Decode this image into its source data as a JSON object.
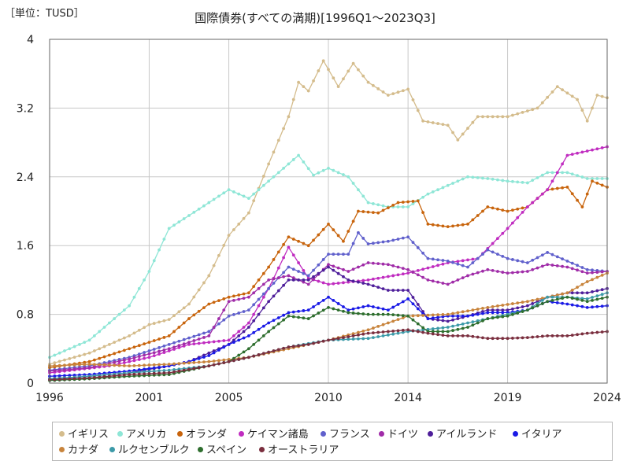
{
  "unit_label": "［単位：TUSD］",
  "chart_data": {
    "type": "line",
    "title": "国際債券(すべての満期)[1996Q1～2023Q3]",
    "xlabel": "",
    "ylabel": "",
    "xlim": [
      1996,
      2024
    ],
    "ylim": [
      0,
      4
    ],
    "y_ticks": [
      "0",
      "0.8",
      "1.6",
      "2.4",
      "3.2",
      "4"
    ],
    "x_ticks": [
      "1996",
      "2001",
      "2005",
      "2010",
      "2014",
      "2019",
      "2024"
    ],
    "grid": true,
    "legend_position": "bottom",
    "series": [
      {
        "name": "イギリス",
        "color": "#d4bc8c",
        "points": [
          [
            1996,
            0.22
          ],
          [
            1998,
            0.35
          ],
          [
            2000,
            0.55
          ],
          [
            2001,
            0.68
          ],
          [
            2002,
            0.74
          ],
          [
            2003,
            0.92
          ],
          [
            2004,
            1.25
          ],
          [
            2005,
            1.72
          ],
          [
            2006,
            1.98
          ],
          [
            2007,
            2.55
          ],
          [
            2008,
            3.1
          ],
          [
            2008.5,
            3.5
          ],
          [
            2009,
            3.4
          ],
          [
            2009.75,
            3.75
          ],
          [
            2010.5,
            3.45
          ],
          [
            2011.25,
            3.72
          ],
          [
            2012,
            3.5
          ],
          [
            2013,
            3.35
          ],
          [
            2014,
            3.42
          ],
          [
            2014.75,
            3.05
          ],
          [
            2016,
            3.0
          ],
          [
            2016.5,
            2.83
          ],
          [
            2017.5,
            3.1
          ],
          [
            2019,
            3.1
          ],
          [
            2020.5,
            3.2
          ],
          [
            2021.5,
            3.45
          ],
          [
            2022.5,
            3.3
          ],
          [
            2023,
            3.05
          ],
          [
            2023.5,
            3.35
          ],
          [
            2024,
            3.32
          ]
        ]
      },
      {
        "name": "アメリカ",
        "color": "#8ee6d6",
        "points": [
          [
            1996,
            0.3
          ],
          [
            1998,
            0.5
          ],
          [
            2000,
            0.9
          ],
          [
            2001,
            1.3
          ],
          [
            2002,
            1.8
          ],
          [
            2003,
            1.95
          ],
          [
            2004,
            2.1
          ],
          [
            2005,
            2.25
          ],
          [
            2006,
            2.15
          ],
          [
            2007,
            2.35
          ],
          [
            2008.5,
            2.65
          ],
          [
            2009.25,
            2.42
          ],
          [
            2010,
            2.5
          ],
          [
            2011,
            2.4
          ],
          [
            2012,
            2.1
          ],
          [
            2013,
            2.05
          ],
          [
            2014,
            2.05
          ],
          [
            2015,
            2.2
          ],
          [
            2016,
            2.3
          ],
          [
            2017,
            2.4
          ],
          [
            2018,
            2.38
          ],
          [
            2019,
            2.35
          ],
          [
            2020,
            2.33
          ],
          [
            2021,
            2.45
          ],
          [
            2022,
            2.45
          ],
          [
            2023,
            2.38
          ],
          [
            2024,
            2.38
          ]
        ]
      },
      {
        "name": "オランダ",
        "color": "#c8640c",
        "points": [
          [
            1996,
            0.18
          ],
          [
            1998,
            0.25
          ],
          [
            2000,
            0.4
          ],
          [
            2002,
            0.55
          ],
          [
            2003,
            0.75
          ],
          [
            2004,
            0.92
          ],
          [
            2005,
            1.0
          ],
          [
            2006,
            1.05
          ],
          [
            2007,
            1.35
          ],
          [
            2008,
            1.7
          ],
          [
            2009,
            1.6
          ],
          [
            2010,
            1.85
          ],
          [
            2010.75,
            1.65
          ],
          [
            2011.5,
            2.0
          ],
          [
            2012.5,
            1.98
          ],
          [
            2013.5,
            2.1
          ],
          [
            2014.5,
            2.12
          ],
          [
            2015,
            1.85
          ],
          [
            2016,
            1.82
          ],
          [
            2017,
            1.85
          ],
          [
            2018,
            2.05
          ],
          [
            2019,
            2.0
          ],
          [
            2020,
            2.05
          ],
          [
            2021,
            2.25
          ],
          [
            2022,
            2.28
          ],
          [
            2022.75,
            2.05
          ],
          [
            2023.25,
            2.35
          ],
          [
            2024,
            2.28
          ]
        ]
      },
      {
        "name": "ケイマン諸島",
        "color": "#c02cc0",
        "points": [
          [
            1996,
            0.12
          ],
          [
            1999,
            0.2
          ],
          [
            2001,
            0.3
          ],
          [
            2003,
            0.45
          ],
          [
            2005,
            0.5
          ],
          [
            2006,
            0.7
          ],
          [
            2007,
            1.1
          ],
          [
            2008,
            1.58
          ],
          [
            2009,
            1.22
          ],
          [
            2010,
            1.15
          ],
          [
            2012,
            1.2
          ],
          [
            2014,
            1.28
          ],
          [
            2016,
            1.4
          ],
          [
            2017.5,
            1.45
          ],
          [
            2019,
            1.8
          ],
          [
            2020,
            2.05
          ],
          [
            2021,
            2.25
          ],
          [
            2022,
            2.65
          ],
          [
            2023,
            2.7
          ],
          [
            2024,
            2.75
          ]
        ]
      },
      {
        "name": "フランス",
        "color": "#6060cc",
        "points": [
          [
            1996,
            0.15
          ],
          [
            1998,
            0.2
          ],
          [
            2000,
            0.3
          ],
          [
            2002,
            0.45
          ],
          [
            2004,
            0.6
          ],
          [
            2005,
            0.78
          ],
          [
            2006,
            0.85
          ],
          [
            2007,
            1.1
          ],
          [
            2008,
            1.35
          ],
          [
            2009,
            1.25
          ],
          [
            2010,
            1.5
          ],
          [
            2011,
            1.5
          ],
          [
            2011.5,
            1.75
          ],
          [
            2012,
            1.62
          ],
          [
            2013,
            1.65
          ],
          [
            2014,
            1.7
          ],
          [
            2015,
            1.45
          ],
          [
            2016,
            1.42
          ],
          [
            2017,
            1.35
          ],
          [
            2018,
            1.55
          ],
          [
            2019,
            1.45
          ],
          [
            2020,
            1.4
          ],
          [
            2021,
            1.52
          ],
          [
            2022,
            1.42
          ],
          [
            2023,
            1.32
          ],
          [
            2024,
            1.3
          ]
        ]
      },
      {
        "name": "ドイツ",
        "color": "#a02ca8",
        "points": [
          [
            1996,
            0.14
          ],
          [
            1998,
            0.18
          ],
          [
            2000,
            0.28
          ],
          [
            2002,
            0.4
          ],
          [
            2004,
            0.55
          ],
          [
            2005,
            0.95
          ],
          [
            2006,
            1.0
          ],
          [
            2007,
            1.2
          ],
          [
            2008,
            1.25
          ],
          [
            2009,
            1.15
          ],
          [
            2010,
            1.38
          ],
          [
            2011,
            1.3
          ],
          [
            2012,
            1.4
          ],
          [
            2013,
            1.38
          ],
          [
            2014,
            1.32
          ],
          [
            2015,
            1.2
          ],
          [
            2016,
            1.15
          ],
          [
            2017,
            1.25
          ],
          [
            2018,
            1.32
          ],
          [
            2019,
            1.28
          ],
          [
            2020,
            1.3
          ],
          [
            2021,
            1.38
          ],
          [
            2022,
            1.35
          ],
          [
            2023,
            1.28
          ],
          [
            2024,
            1.3
          ]
        ]
      },
      {
        "name": "アイルランド",
        "color": "#4e1e9a",
        "points": [
          [
            1996,
            0.05
          ],
          [
            1998,
            0.08
          ],
          [
            2000,
            0.12
          ],
          [
            2002,
            0.2
          ],
          [
            2003,
            0.25
          ],
          [
            2004,
            0.35
          ],
          [
            2005,
            0.45
          ],
          [
            2006,
            0.65
          ],
          [
            2007,
            0.95
          ],
          [
            2008,
            1.2
          ],
          [
            2009,
            1.2
          ],
          [
            2010,
            1.35
          ],
          [
            2011,
            1.2
          ],
          [
            2012,
            1.15
          ],
          [
            2013,
            1.08
          ],
          [
            2014,
            1.08
          ],
          [
            2015,
            0.75
          ],
          [
            2016,
            0.72
          ],
          [
            2017,
            0.78
          ],
          [
            2018,
            0.85
          ],
          [
            2019,
            0.85
          ],
          [
            2020,
            0.9
          ],
          [
            2021,
            1.0
          ],
          [
            2022,
            1.05
          ],
          [
            2023,
            1.05
          ],
          [
            2024,
            1.1
          ]
        ]
      },
      {
        "name": "イタリア",
        "color": "#1a1ae6",
        "points": [
          [
            1996,
            0.08
          ],
          [
            1998,
            0.1
          ],
          [
            2000,
            0.14
          ],
          [
            2002,
            0.2
          ],
          [
            2003,
            0.25
          ],
          [
            2004,
            0.32
          ],
          [
            2005,
            0.45
          ],
          [
            2006,
            0.55
          ],
          [
            2007,
            0.7
          ],
          [
            2008,
            0.82
          ],
          [
            2009,
            0.85
          ],
          [
            2010,
            1.0
          ],
          [
            2011,
            0.85
          ],
          [
            2012,
            0.9
          ],
          [
            2013,
            0.85
          ],
          [
            2014,
            0.98
          ],
          [
            2015,
            0.75
          ],
          [
            2016,
            0.78
          ],
          [
            2017,
            0.78
          ],
          [
            2018,
            0.82
          ],
          [
            2019,
            0.82
          ],
          [
            2020,
            0.85
          ],
          [
            2021,
            0.95
          ],
          [
            2022,
            0.92
          ],
          [
            2023,
            0.88
          ],
          [
            2024,
            0.9
          ]
        ]
      },
      {
        "name": "カナダ",
        "color": "#c8843c",
        "points": [
          [
            1996,
            0.2
          ],
          [
            1998,
            0.22
          ],
          [
            2000,
            0.2
          ],
          [
            2002,
            0.22
          ],
          [
            2004,
            0.25
          ],
          [
            2006,
            0.3
          ],
          [
            2008,
            0.4
          ],
          [
            2010,
            0.5
          ],
          [
            2012,
            0.62
          ],
          [
            2014,
            0.78
          ],
          [
            2016,
            0.8
          ],
          [
            2018,
            0.88
          ],
          [
            2020,
            0.95
          ],
          [
            2022,
            1.05
          ],
          [
            2023,
            1.18
          ],
          [
            2024,
            1.28
          ]
        ]
      },
      {
        "name": "ルクセンブルク",
        "color": "#3c9aa8",
        "points": [
          [
            1996,
            0.05
          ],
          [
            1998,
            0.08
          ],
          [
            2000,
            0.12
          ],
          [
            2002,
            0.15
          ],
          [
            2004,
            0.2
          ],
          [
            2006,
            0.3
          ],
          [
            2008,
            0.42
          ],
          [
            2010,
            0.5
          ],
          [
            2012,
            0.52
          ],
          [
            2014,
            0.6
          ],
          [
            2016,
            0.65
          ],
          [
            2018,
            0.75
          ],
          [
            2020,
            0.85
          ],
          [
            2021,
            1.0
          ],
          [
            2022,
            1.0
          ],
          [
            2023,
            0.98
          ],
          [
            2024,
            1.05
          ]
        ]
      },
      {
        "name": "スペイン",
        "color": "#2e6e2e",
        "points": [
          [
            1996,
            0.03
          ],
          [
            1998,
            0.05
          ],
          [
            2000,
            0.08
          ],
          [
            2002,
            0.1
          ],
          [
            2004,
            0.2
          ],
          [
            2005,
            0.25
          ],
          [
            2006,
            0.4
          ],
          [
            2007,
            0.6
          ],
          [
            2008,
            0.78
          ],
          [
            2009,
            0.75
          ],
          [
            2010,
            0.88
          ],
          [
            2011,
            0.82
          ],
          [
            2012,
            0.8
          ],
          [
            2013,
            0.8
          ],
          [
            2014,
            0.78
          ],
          [
            2015,
            0.6
          ],
          [
            2016,
            0.6
          ],
          [
            2017,
            0.65
          ],
          [
            2018,
            0.75
          ],
          [
            2019,
            0.78
          ],
          [
            2020,
            0.85
          ],
          [
            2021,
            0.95
          ],
          [
            2022,
            1.0
          ],
          [
            2023,
            0.95
          ],
          [
            2024,
            1.0
          ]
        ]
      },
      {
        "name": "オーストラリア",
        "color": "#7a2e3e",
        "points": [
          [
            1996,
            0.04
          ],
          [
            1998,
            0.06
          ],
          [
            2000,
            0.1
          ],
          [
            2002,
            0.12
          ],
          [
            2004,
            0.2
          ],
          [
            2006,
            0.3
          ],
          [
            2008,
            0.42
          ],
          [
            2009,
            0.45
          ],
          [
            2010,
            0.5
          ],
          [
            2012,
            0.58
          ],
          [
            2014,
            0.62
          ],
          [
            2015,
            0.58
          ],
          [
            2016,
            0.55
          ],
          [
            2017,
            0.55
          ],
          [
            2018,
            0.52
          ],
          [
            2019,
            0.52
          ],
          [
            2020,
            0.53
          ],
          [
            2021,
            0.55
          ],
          [
            2022,
            0.55
          ],
          [
            2023,
            0.58
          ],
          [
            2024,
            0.6
          ]
        ]
      }
    ]
  }
}
